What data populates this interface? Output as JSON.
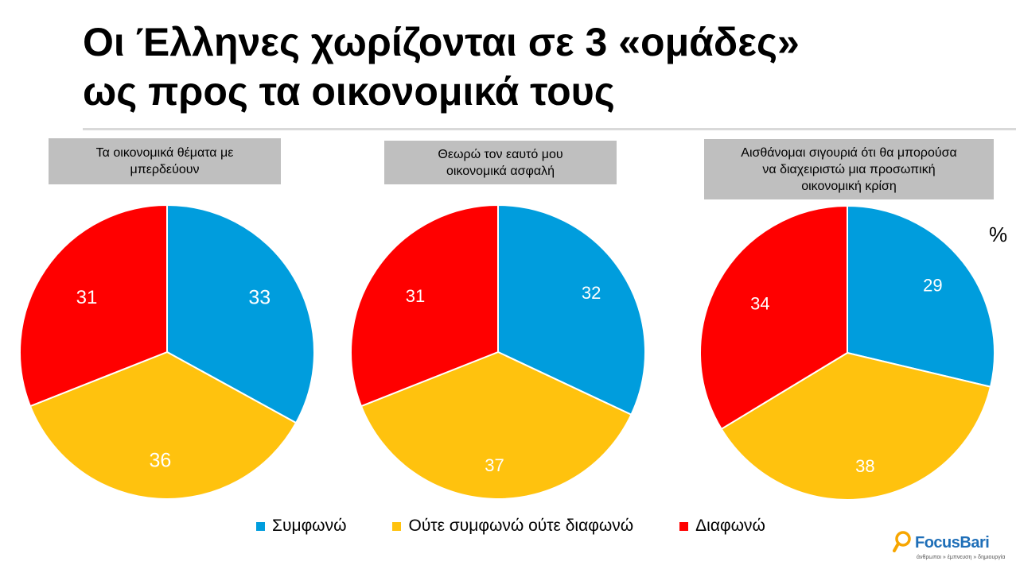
{
  "title_lines": [
    "Οι Έλληνες χωρίζονται σε 3 «ομάδες»",
    "ως προς τα οικονομικά τους"
  ],
  "unit_label": "%",
  "colors": {
    "agree": "#009ddd",
    "neutral": "#ffc20e",
    "disagree": "#ff0000"
  },
  "legend": [
    {
      "label": "Συμφωνώ",
      "color": "#009ddd"
    },
    {
      "label": "Ούτε συμφωνώ ούτε διαφωνώ",
      "color": "#ffc20e"
    },
    {
      "label": "Διαφωνώ",
      "color": "#ff0000"
    }
  ],
  "logo": {
    "name": "FocusBari",
    "tagline": "άνθρωποι » έμπνευση » δημιουργία"
  },
  "chart_data": [
    {
      "type": "pie",
      "title": "Τα οικονομικά θέματα με μπερδεύουν",
      "title_lines": [
        "Τα οικονομικά θέματα με",
        "μπερδεύουν"
      ],
      "categories": [
        "Συμφωνώ",
        "Ούτε συμφωνώ ούτε διαφωνώ",
        "Διαφωνώ"
      ],
      "values": [
        33,
        36,
        31
      ],
      "labels": [
        "33",
        "36",
        "31"
      ]
    },
    {
      "type": "pie",
      "title": "Θεωρώ τον εαυτό μου οικονομικά ασφαλή",
      "title_lines": [
        "Θεωρώ τον εαυτό μου",
        "οικονομικά ασφαλή"
      ],
      "categories": [
        "Συμφωνώ",
        "Ούτε συμφωνώ ούτε διαφωνώ",
        "Διαφωνώ"
      ],
      "values": [
        32,
        37,
        31
      ],
      "labels": [
        "32",
        "37",
        "31"
      ]
    },
    {
      "type": "pie",
      "title": "Αισθάνομαι σιγουριά ότι θα μπορούσα να διαχειριστώ μια προσωπική οικονομική κρίση",
      "title_lines": [
        "Αισθάνομαι σιγουριά ότι θα μπορούσα",
        "να διαχειριστώ μια προσωπική",
        "οικονομική κρίση"
      ],
      "categories": [
        "Συμφωνώ",
        "Ούτε συμφωνώ ούτε διαφωνώ",
        "Διαφωνώ"
      ],
      "values": [
        29,
        38,
        34
      ],
      "labels": [
        "29",
        "38",
        "34"
      ]
    }
  ]
}
